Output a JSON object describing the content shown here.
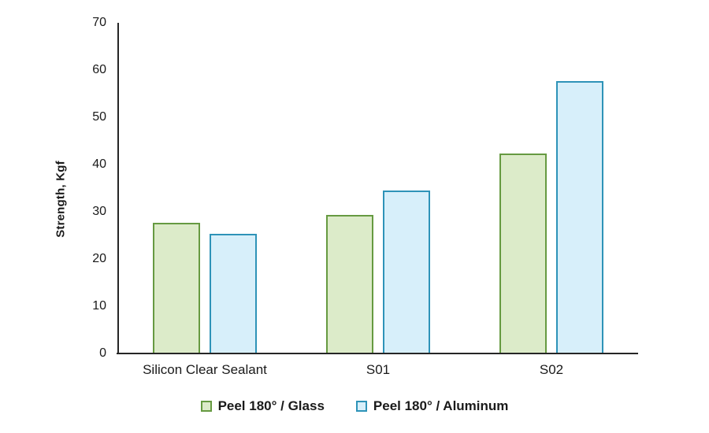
{
  "figure": {
    "background": "#ffffff"
  },
  "chart_data": {
    "type": "bar",
    "title": "",
    "xlabel": "",
    "ylabel": "Strength, Kgf",
    "categories": [
      "Silicon Clear Sealant",
      "S01",
      "S02"
    ],
    "series": [
      {
        "name": "Peel 180° / Glass",
        "values": [
          27.7,
          29.3,
          42.4
        ],
        "fill_color": "#DCEBC9",
        "border_color": "#669A41"
      },
      {
        "name": "Peel 180° / Aluminum",
        "values": [
          25.4,
          34.5,
          57.7
        ],
        "fill_color": "#D7EFFA",
        "border_color": "#2E93B8"
      }
    ],
    "ylim": [
      0,
      70
    ],
    "yticks": [
      0,
      10,
      20,
      30,
      40,
      50,
      60,
      70
    ],
    "grid": false,
    "legend_position": "bottom",
    "axis_color": "#262626",
    "text_color": "#1a1a1a"
  }
}
